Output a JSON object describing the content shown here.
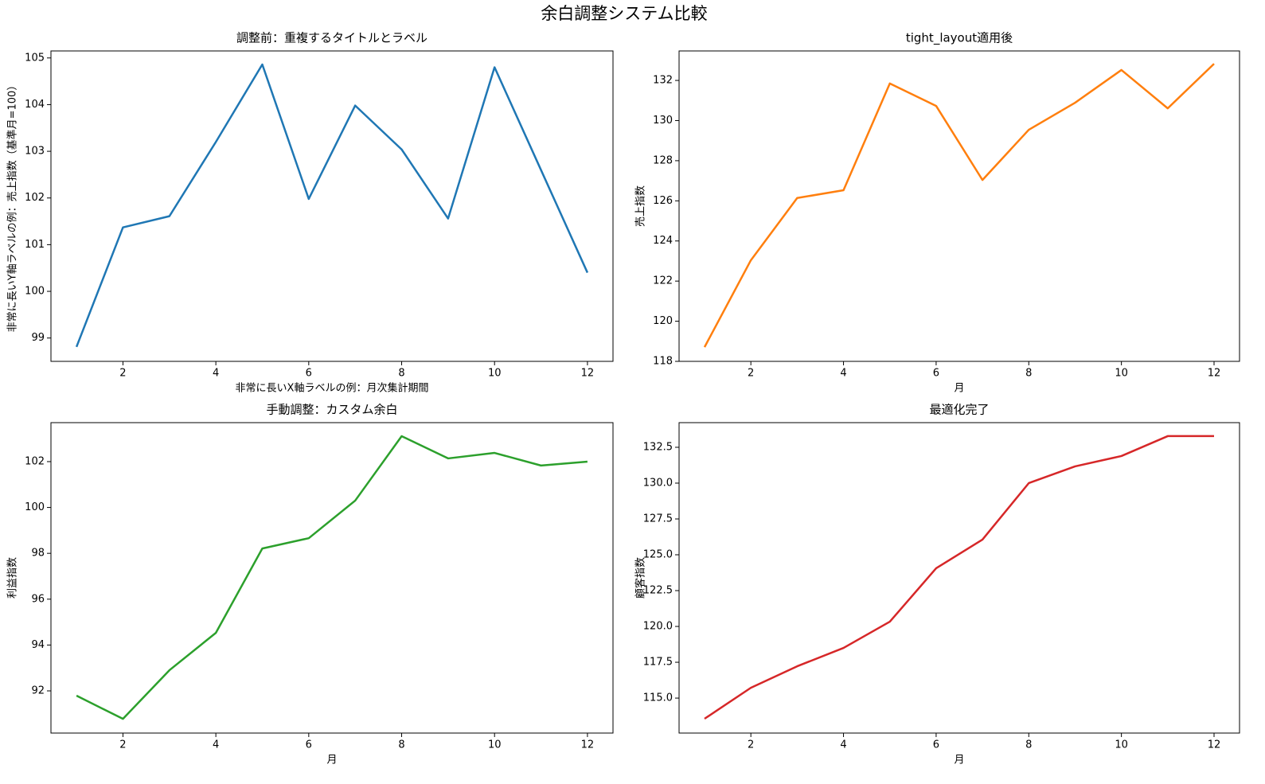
{
  "title": "余白調整システム比較",
  "chart_data": [
    {
      "type": "line",
      "title": "調整前：重複するタイトルとラベル",
      "x_label": "非常に長いX軸ラベルの例：月次集計期間",
      "y_label": "非常に長いY軸ラベルの例：売上指数（基準月=100）",
      "x": [
        1,
        2,
        3,
        4,
        5,
        6,
        7,
        8,
        9,
        10,
        11,
        12
      ],
      "series": [
        {
          "name": "売上指数",
          "color": "#1f77b4",
          "values": [
            98.81,
            101.37,
            101.61,
            103.2,
            104.86,
            101.98,
            103.98,
            103.04,
            101.56,
            104.8,
            102.6,
            100.4
          ]
        }
      ],
      "xlim": [
        0.45,
        12.55
      ],
      "xticks": [
        2,
        4,
        6,
        8,
        10,
        12
      ],
      "ylim": [
        98.5,
        105.15
      ],
      "yticks": [
        99,
        100,
        101,
        102,
        103,
        104,
        105
      ]
    },
    {
      "type": "line",
      "title": "tight_layout適用後",
      "x_label": "月",
      "y_label": "売上指数",
      "x": [
        1,
        2,
        3,
        4,
        5,
        6,
        7,
        8,
        9,
        10,
        11,
        12
      ],
      "series": [
        {
          "name": "売上指数",
          "color": "#ff7f0e",
          "values": [
            118.71,
            123.04,
            126.14,
            126.53,
            131.85,
            130.73,
            127.04,
            129.54,
            130.89,
            132.52,
            130.61,
            132.83
          ]
        }
      ],
      "xlim": [
        0.45,
        12.55
      ],
      "xticks": [
        2,
        4,
        6,
        8,
        10,
        12
      ],
      "ylim": [
        118,
        133.47
      ],
      "yticks": [
        118,
        120,
        122,
        124,
        126,
        128,
        130,
        132
      ]
    },
    {
      "type": "line",
      "title": "手動調整：カスタム余白",
      "x_label": "月",
      "y_label": "利益指数",
      "x": [
        1,
        2,
        3,
        4,
        5,
        6,
        7,
        8,
        9,
        10,
        11,
        12
      ],
      "series": [
        {
          "name": "利益指数",
          "color": "#2ca02c",
          "values": [
            91.79,
            90.78,
            92.9,
            94.53,
            98.21,
            98.66,
            100.3,
            103.11,
            102.14,
            102.38,
            101.83,
            102.0
          ]
        }
      ],
      "xlim": [
        0.45,
        12.55
      ],
      "xticks": [
        2,
        4,
        6,
        8,
        10,
        12
      ],
      "ylim": [
        90.16,
        103.7
      ],
      "yticks": [
        92,
        94,
        96,
        98,
        100,
        102
      ]
    },
    {
      "type": "line",
      "title": "最適化完了",
      "x_label": "月",
      "y_label": "顧客指数",
      "x": [
        1,
        2,
        3,
        4,
        5,
        6,
        7,
        8,
        9,
        10,
        11,
        12
      ],
      "series": [
        {
          "name": "顧客指数",
          "color": "#d62728",
          "values": [
            113.56,
            115.72,
            117.22,
            118.5,
            120.33,
            124.06,
            126.06,
            130.0,
            131.17,
            131.89,
            133.28,
            133.28
          ]
        }
      ],
      "xlim": [
        0.45,
        12.55
      ],
      "xticks": [
        2,
        4,
        6,
        8,
        10,
        12
      ],
      "ylim": [
        112.56,
        134.22
      ],
      "yticks": [
        {
          "value": 115,
          "label": "115.0"
        },
        {
          "value": 117.5,
          "label": "117.5"
        },
        {
          "value": 120,
          "label": "120.0"
        },
        {
          "value": 122.5,
          "label": "122.5"
        },
        {
          "value": 125,
          "label": "125.0"
        },
        {
          "value": 127.5,
          "label": "127.5"
        },
        {
          "value": 130,
          "label": "130.0"
        },
        {
          "value": 132.5,
          "label": "132.5"
        }
      ]
    }
  ]
}
